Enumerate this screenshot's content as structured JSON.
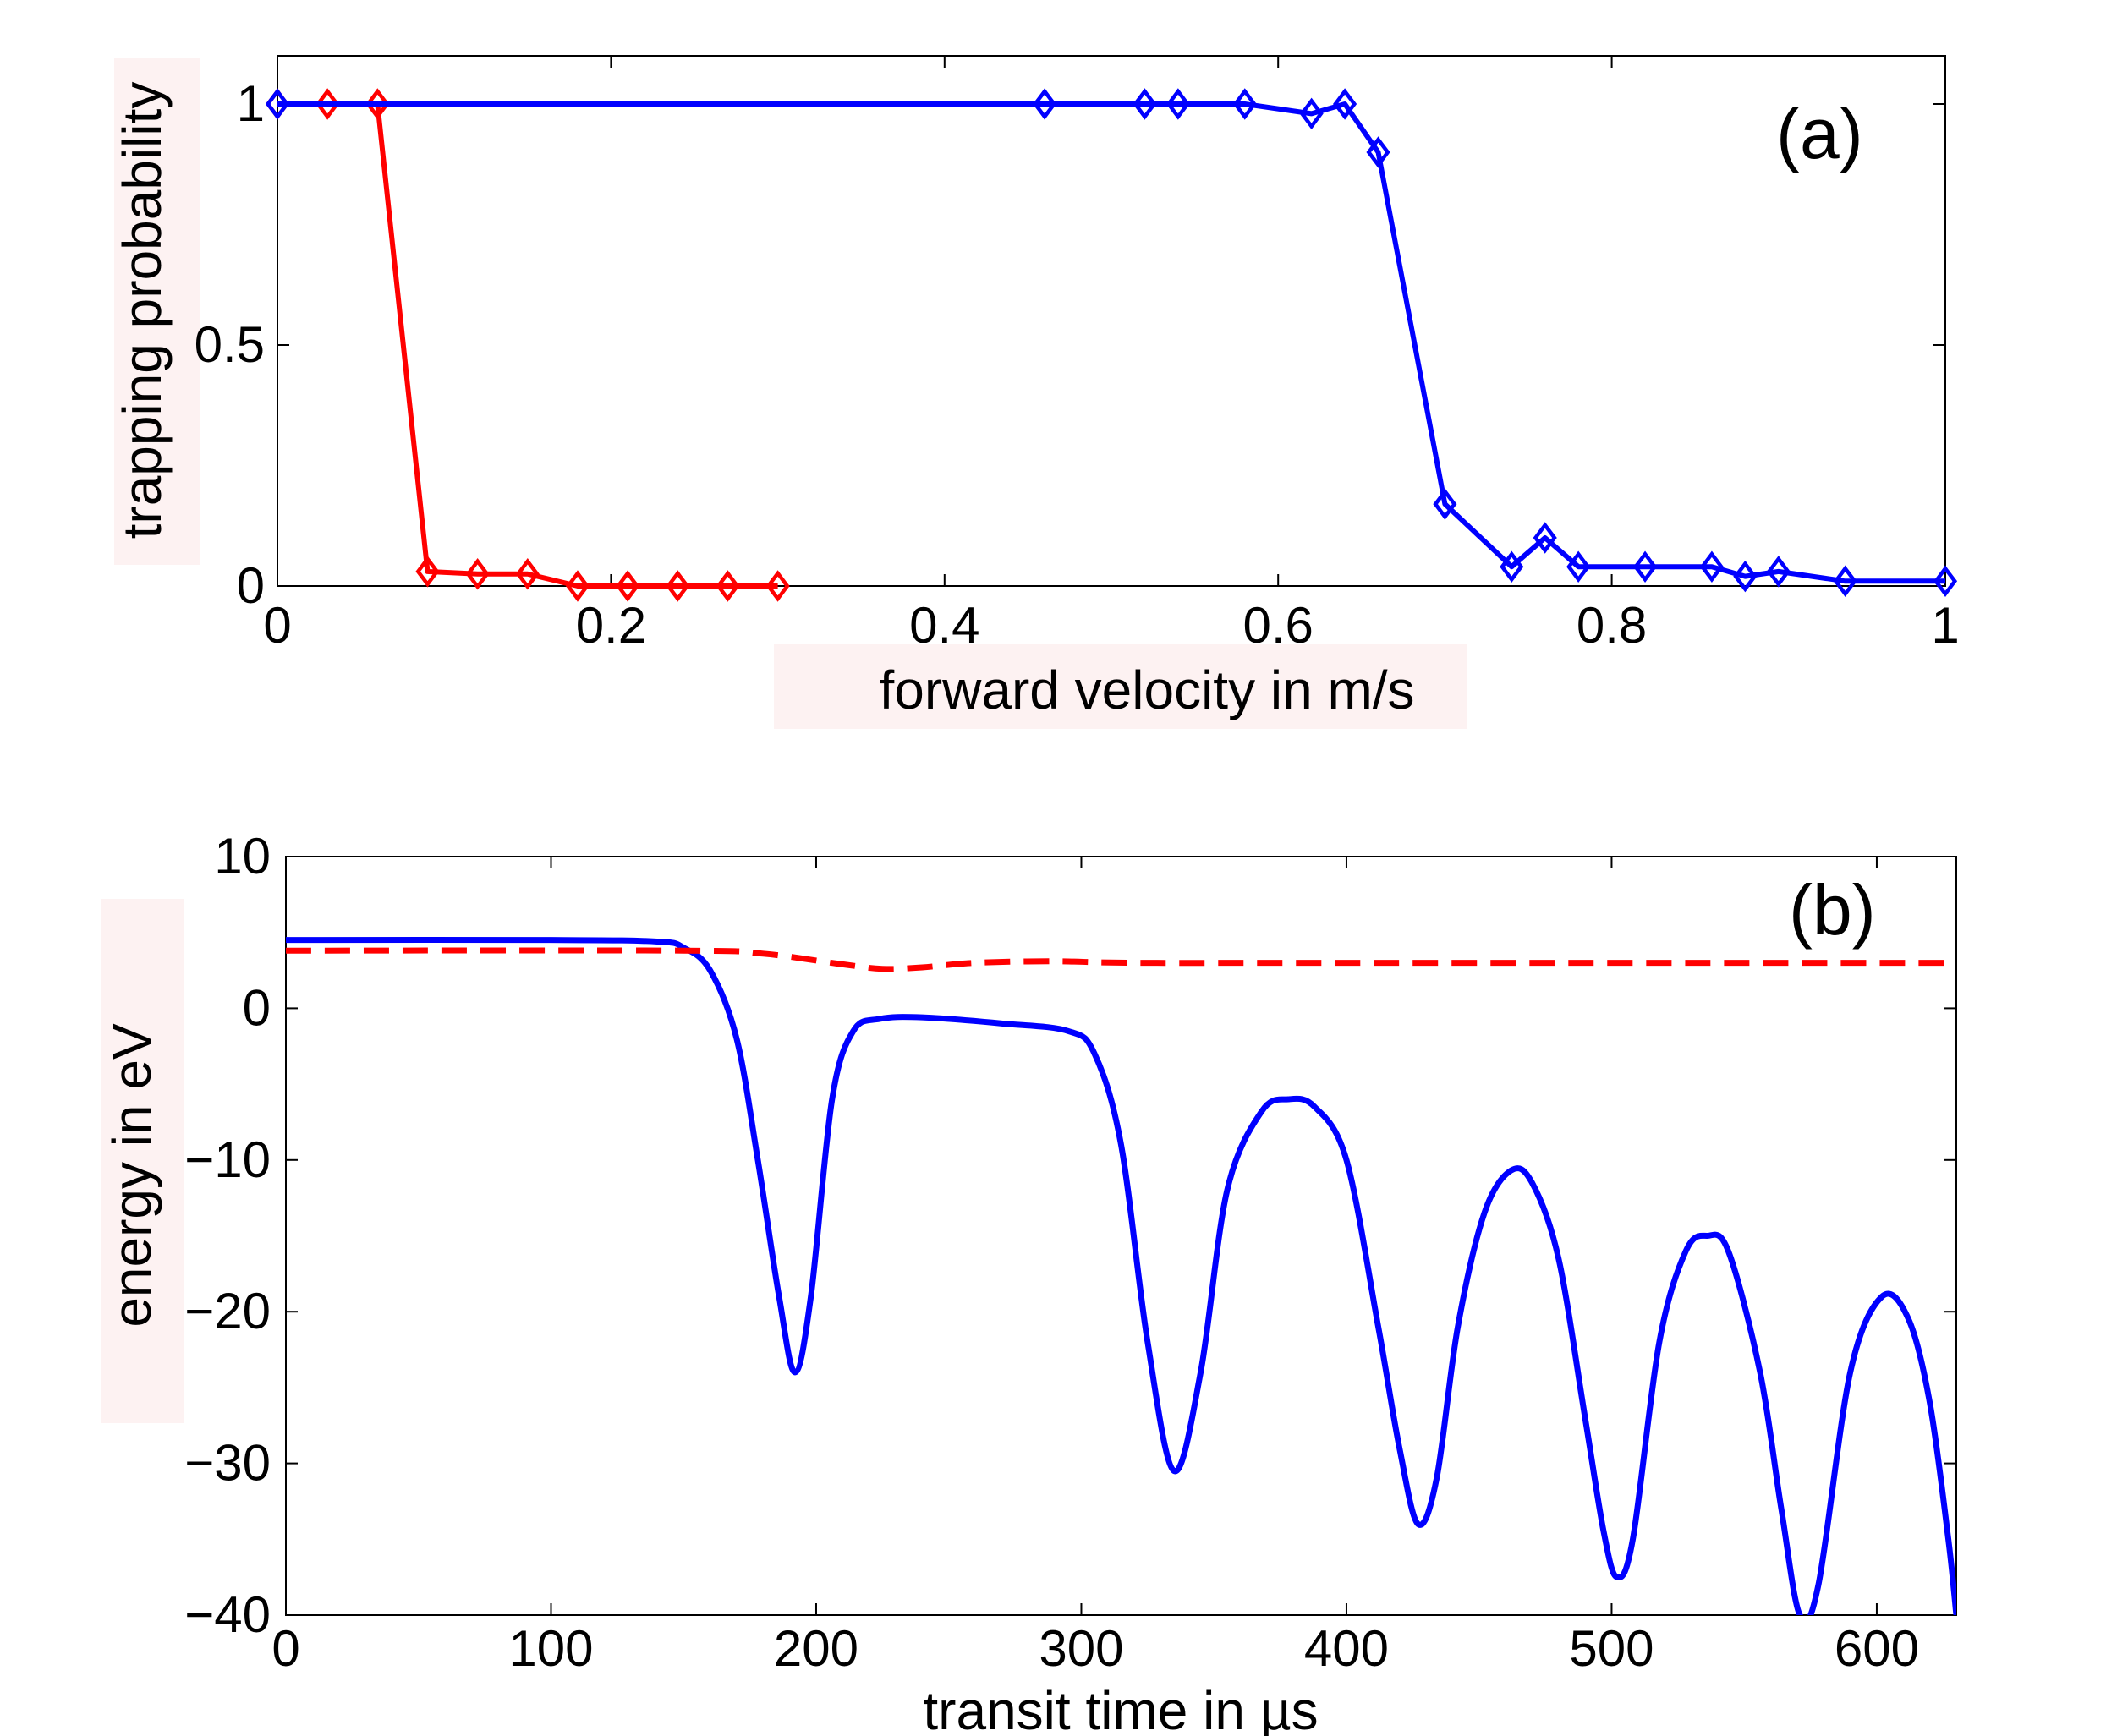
{
  "chart_data": [
    {
      "panel_label": "(a)",
      "type": "line",
      "xlabel": "forward velocity in m/s",
      "ylabel": "trapping probability",
      "xlim": [
        0,
        1
      ],
      "ylim": [
        0,
        1.1
      ],
      "xticks": [
        0,
        0.2,
        0.4,
        0.6,
        0.8,
        1
      ],
      "xtick_labels": [
        "0",
        "0.2",
        "0.4",
        "0.6",
        "0.8",
        "1"
      ],
      "yticks": [
        0,
        0.5,
        1
      ],
      "ytick_labels": [
        "0",
        "0.5",
        "1"
      ],
      "series": [
        {
          "name": "red",
          "color": "#ff0000",
          "marker": "diamond",
          "x": [
            0,
            0.03,
            0.06,
            0.09,
            0.12,
            0.15,
            0.18,
            0.21,
            0.24,
            0.27,
            0.3
          ],
          "y": [
            1.0,
            1.0,
            1.0,
            0.03,
            0.025,
            0.025,
            0.0,
            0.0,
            0.0,
            0.0,
            0.0
          ]
        },
        {
          "name": "blue",
          "color": "#0000ff",
          "marker": "diamond",
          "x": [
            0,
            0.46,
            0.52,
            0.54,
            0.58,
            0.62,
            0.64,
            0.66,
            0.7,
            0.74,
            0.76,
            0.78,
            0.82,
            0.86,
            0.88,
            0.9,
            0.94,
            1.0
          ],
          "y": [
            1.0,
            1.0,
            1.0,
            1.0,
            1.0,
            0.98,
            1.0,
            0.9,
            0.17,
            0.04,
            0.1,
            0.04,
            0.04,
            0.04,
            0.02,
            0.03,
            0.01,
            0.01
          ]
        }
      ]
    },
    {
      "panel_label": "(b)",
      "type": "line",
      "xlabel": "transit time in  µs",
      "ylabel": "energy in eV",
      "xlim": [
        0,
        630
      ],
      "ylim": [
        -40,
        10
      ],
      "xticks": [
        0,
        100,
        200,
        300,
        400,
        500,
        600
      ],
      "xtick_labels": [
        "0",
        "100",
        "200",
        "300",
        "400",
        "500",
        "600"
      ],
      "yticks": [
        10,
        0,
        -10,
        -20,
        -30,
        -40
      ],
      "ytick_labels": [
        "10",
        "0",
        "−10",
        "−20",
        "−30",
        "−40"
      ],
      "series": [
        {
          "name": "blue solid",
          "color": "#0000ff",
          "style": "solid",
          "x": [
            0,
            100,
            140,
            150,
            160,
            170,
            178,
            186,
            192,
            198,
            206,
            214,
            224,
            240,
            270,
            295,
            305,
            315,
            325,
            335,
            345,
            355,
            368,
            378,
            388,
            400,
            412,
            420,
            427,
            434,
            442,
            452,
            462,
            470,
            480,
            490,
            497,
            502,
            508,
            518,
            528,
            536,
            544,
            556,
            564,
            571,
            578,
            590,
            602,
            612,
            620,
            627,
            630
          ],
          "y": [
            4.5,
            4.5,
            4.4,
            4.0,
            2.5,
            -2.0,
            -10.0,
            -19.0,
            -24.0,
            -19.0,
            -6.0,
            -1.5,
            -0.7,
            -0.6,
            -1.0,
            -1.5,
            -3.0,
            -9.0,
            -22.0,
            -30.5,
            -24.0,
            -12.0,
            -6.8,
            -6.0,
            -6.5,
            -10.0,
            -21.0,
            -29.0,
            -34.0,
            -31.0,
            -21.0,
            -13.5,
            -10.7,
            -11.5,
            -16.5,
            -27.0,
            -34.5,
            -37.5,
            -35.0,
            -22.0,
            -16.0,
            -15.0,
            -16.0,
            -24.0,
            -33.0,
            -40.0,
            -38.0,
            -24.0,
            -19.0,
            -20.5,
            -26.0,
            -35.0,
            -40.0
          ]
        },
        {
          "name": "red dashed",
          "color": "#ff0000",
          "style": "dashed",
          "x": [
            0,
            150,
            180,
            210,
            225,
            240,
            260,
            290,
            320,
            400,
            630
          ],
          "y": [
            3.8,
            3.8,
            3.6,
            2.9,
            2.6,
            2.7,
            3.0,
            3.1,
            3.0,
            3.0,
            3.0
          ]
        }
      ]
    }
  ]
}
